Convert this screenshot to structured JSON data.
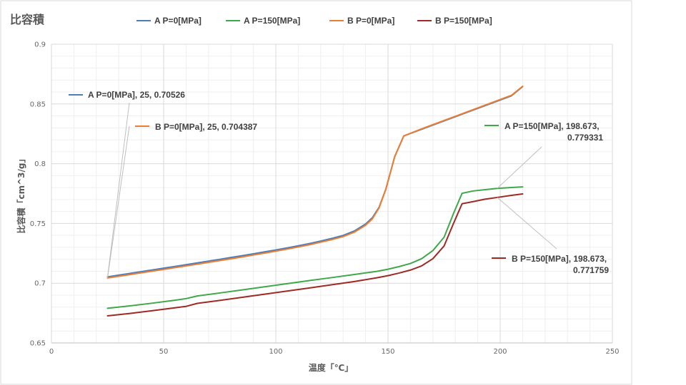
{
  "chart_data": {
    "type": "line",
    "title": "比容積",
    "xlabel": "温度「℃」",
    "ylabel": "比容積「cm^3/g」",
    "xlim": [
      0,
      250
    ],
    "ylim": [
      0.65,
      0.9
    ],
    "x_ticks": [
      0,
      50,
      100,
      150,
      200,
      250
    ],
    "y_ticks": [
      0.65,
      0.7,
      0.75,
      0.8,
      0.85,
      0.9
    ],
    "x_tick_labels": [
      "0",
      "50",
      "100",
      "150",
      "200",
      "250"
    ],
    "y_tick_labels": [
      "0.65",
      "0.7",
      "0.75",
      "0.8",
      "0.85",
      "0.9"
    ],
    "grid": true,
    "legend_position": "top",
    "series": [
      {
        "name": "A P=0[MPa]",
        "color": "#4a7ebb",
        "points": [
          [
            25,
            0.70526
          ],
          [
            30,
            0.7068
          ],
          [
            35,
            0.7082
          ],
          [
            40,
            0.7097
          ],
          [
            45,
            0.7111
          ],
          [
            50,
            0.7126
          ],
          [
            55,
            0.714
          ],
          [
            60,
            0.7155
          ],
          [
            65,
            0.717
          ],
          [
            70,
            0.7185
          ],
          [
            75,
            0.72
          ],
          [
            80,
            0.7215
          ],
          [
            85,
            0.723
          ],
          [
            90,
            0.7246
          ],
          [
            95,
            0.7262
          ],
          [
            100,
            0.7278
          ],
          [
            105,
            0.7295
          ],
          [
            110,
            0.7313
          ],
          [
            115,
            0.7332
          ],
          [
            120,
            0.7353
          ],
          [
            125,
            0.7375
          ],
          [
            130,
            0.74
          ],
          [
            135,
            0.7437
          ],
          [
            140,
            0.7495
          ],
          [
            143,
            0.7548
          ],
          [
            146,
            0.7635
          ],
          [
            149,
            0.7785
          ],
          [
            153,
            0.806
          ],
          [
            157,
            0.8232
          ],
          [
            165,
            0.8288
          ],
          [
            175,
            0.8358
          ],
          [
            185,
            0.8428
          ],
          [
            195,
            0.8498
          ],
          [
            205,
            0.8568
          ],
          [
            210,
            0.8645
          ]
        ]
      },
      {
        "name": "A P=150[MPa]",
        "color": "#3fa84a",
        "points": [
          [
            25,
            0.679
          ],
          [
            35,
            0.681
          ],
          [
            45,
            0.6833
          ],
          [
            55,
            0.6857
          ],
          [
            60,
            0.6871
          ],
          [
            65,
            0.6893
          ],
          [
            75,
            0.6918
          ],
          [
            85,
            0.6944
          ],
          [
            95,
            0.697
          ],
          [
            105,
            0.6996
          ],
          [
            115,
            0.7022
          ],
          [
            125,
            0.7047
          ],
          [
            135,
            0.7073
          ],
          [
            145,
            0.7099
          ],
          [
            150,
            0.7117
          ],
          [
            155,
            0.7139
          ],
          [
            160,
            0.7165
          ],
          [
            165,
            0.7205
          ],
          [
            170,
            0.7273
          ],
          [
            175,
            0.7385
          ],
          [
            179,
            0.7575
          ],
          [
            183,
            0.7752
          ],
          [
            188,
            0.7772
          ],
          [
            193,
            0.7782
          ],
          [
            198.673,
            0.779331
          ],
          [
            205,
            0.7801
          ],
          [
            210,
            0.7806
          ]
        ]
      },
      {
        "name": "B P=0[MPa]",
        "color": "#ed7d31",
        "points": [
          [
            25,
            0.704387
          ],
          [
            30,
            0.7058
          ],
          [
            35,
            0.7072
          ],
          [
            40,
            0.7087
          ],
          [
            45,
            0.7101
          ],
          [
            50,
            0.7115
          ],
          [
            55,
            0.713
          ],
          [
            60,
            0.7144
          ],
          [
            65,
            0.7159
          ],
          [
            70,
            0.7174
          ],
          [
            75,
            0.7189
          ],
          [
            80,
            0.7204
          ],
          [
            85,
            0.722
          ],
          [
            90,
            0.7236
          ],
          [
            95,
            0.7252
          ],
          [
            100,
            0.7268
          ],
          [
            105,
            0.7285
          ],
          [
            110,
            0.7303
          ],
          [
            115,
            0.7322
          ],
          [
            120,
            0.7343
          ],
          [
            125,
            0.7365
          ],
          [
            130,
            0.739
          ],
          [
            135,
            0.7427
          ],
          [
            140,
            0.7485
          ],
          [
            143,
            0.7538
          ],
          [
            146,
            0.763
          ],
          [
            149,
            0.7785
          ],
          [
            153,
            0.806
          ],
          [
            157,
            0.8232
          ],
          [
            165,
            0.8292
          ],
          [
            175,
            0.8362
          ],
          [
            185,
            0.8432
          ],
          [
            195,
            0.8502
          ],
          [
            205,
            0.8572
          ],
          [
            210,
            0.8648
          ]
        ]
      },
      {
        "name": "B P=150[MPa]",
        "color": "#9e2a24",
        "points": [
          [
            25,
            0.6727
          ],
          [
            35,
            0.6747
          ],
          [
            45,
            0.677
          ],
          [
            55,
            0.6794
          ],
          [
            60,
            0.6806
          ],
          [
            65,
            0.6831
          ],
          [
            75,
            0.6856
          ],
          [
            85,
            0.6882
          ],
          [
            95,
            0.6908
          ],
          [
            105,
            0.6934
          ],
          [
            115,
            0.696
          ],
          [
            125,
            0.6987
          ],
          [
            135,
            0.7014
          ],
          [
            145,
            0.7045
          ],
          [
            150,
            0.7063
          ],
          [
            155,
            0.7085
          ],
          [
            160,
            0.711
          ],
          [
            165,
            0.7145
          ],
          [
            170,
            0.7205
          ],
          [
            175,
            0.7312
          ],
          [
            179,
            0.7492
          ],
          [
            183,
            0.7665
          ],
          [
            188,
            0.7683
          ],
          [
            193,
            0.7702
          ],
          [
            198.673,
            0.771759
          ],
          [
            205,
            0.7735
          ],
          [
            210,
            0.7747
          ]
        ]
      }
    ],
    "annotations": [
      {
        "series": "A P=0[MPa]",
        "x": 25,
        "y": 0.70526,
        "text": [
          "A P=0[MPa], 25, 0.70526"
        ]
      },
      {
        "series": "B P=0[MPa]",
        "x": 25,
        "y": 0.704387,
        "text": [
          "B P=0[MPa], 25, 0.704387"
        ]
      },
      {
        "series": "A P=150[MPa]",
        "x": 198.673,
        "y": 0.779331,
        "text": [
          "A P=150[MPa], 198.673,",
          "0.779331"
        ]
      },
      {
        "series": "B P=150[MPa]",
        "x": 198.673,
        "y": 0.771759,
        "text": [
          "B P=150[MPa], 198.673,",
          "0.771759"
        ]
      }
    ]
  }
}
